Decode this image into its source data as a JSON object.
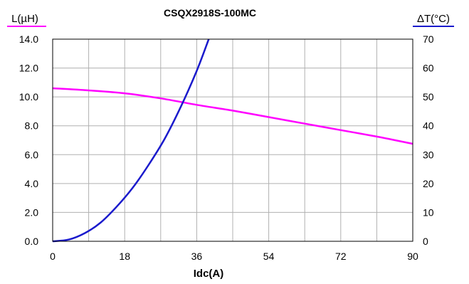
{
  "chart_data": {
    "type": "line",
    "title": "CSQX2918S-100MC",
    "xlabel": "Idc(A)",
    "ylabel_left": "L(µH)",
    "ylabel_right": "ΔT(°C)",
    "xlim": [
      0,
      90
    ],
    "ylim_left": [
      0,
      14
    ],
    "ylim_right": [
      0,
      70
    ],
    "x_ticks": [
      "0",
      "18",
      "36",
      "54",
      "72",
      "90"
    ],
    "y_left_ticks": [
      "0.0",
      "2.0",
      "4.0",
      "6.0",
      "8.0",
      "10.0",
      "12.0",
      "14.0"
    ],
    "y_right_ticks": [
      "0",
      "10",
      "20",
      "30",
      "40",
      "50",
      "60",
      "70"
    ],
    "grid": true,
    "series": [
      {
        "axis": "left",
        "color": "#ff00ff",
        "x": [
          0,
          9,
          18,
          27,
          36,
          45,
          54,
          63,
          72,
          81,
          90
        ],
        "values": [
          10.6,
          10.45,
          10.25,
          9.9,
          9.45,
          9.05,
          8.6,
          8.15,
          7.7,
          7.25,
          6.75
        ]
      },
      {
        "axis": "right",
        "color": "#1a1acc",
        "x": [
          0,
          4,
          8,
          12,
          16,
          20,
          24,
          28,
          32,
          36,
          39
        ],
        "values": [
          0,
          0.6,
          2.8,
          6.5,
          12,
          18.5,
          26.5,
          35.5,
          46.5,
          59,
          70
        ]
      }
    ]
  }
}
